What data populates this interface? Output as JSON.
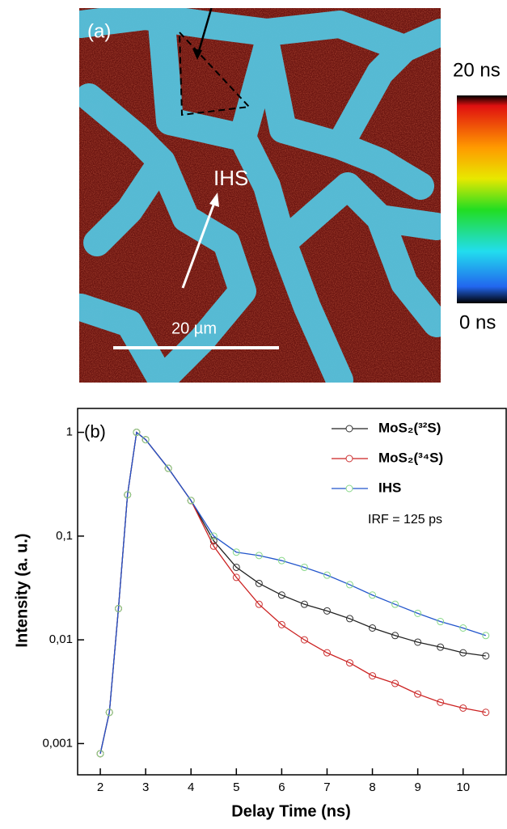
{
  "panel_a": {
    "label": "(a)",
    "annotation": "IHS",
    "scale_bar": "20 µm",
    "colorbar": {
      "max_label": "20 ns",
      "min_label": "0 ns"
    }
  },
  "chart_data": {
    "type": "line",
    "panel_label": "(b)",
    "x_label": "Delay Time (ns)",
    "y_label": "Intensity (a. u.)",
    "annotation": "IRF = 125 ps",
    "log_y": true,
    "legend": "upper right",
    "x": [
      2.0,
      2.2,
      2.4,
      2.6,
      2.8,
      3.0,
      3.5,
      4.0,
      4.5,
      5.0,
      5.5,
      6.0,
      6.5,
      7.0,
      7.5,
      8.0,
      8.5,
      9.0,
      9.5,
      10.0,
      10.5
    ],
    "series": [
      {
        "name": "MoS₂(³²S)",
        "color": "#222222",
        "marker_color": "#333333",
        "values": [
          0.0008,
          0.002,
          0.02,
          0.25,
          1,
          0.85,
          0.45,
          0.22,
          0.09,
          0.05,
          0.035,
          0.027,
          0.022,
          0.019,
          0.016,
          0.013,
          0.011,
          0.0095,
          0.0085,
          0.0075,
          0.007
        ]
      },
      {
        "name": "MoS₂(³⁴S)",
        "color": "#cc2222",
        "marker_color": "#cc3333",
        "values": [
          0.0008,
          0.002,
          0.02,
          0.25,
          1,
          0.85,
          0.45,
          0.22,
          0.08,
          0.04,
          0.022,
          0.014,
          0.01,
          0.0075,
          0.006,
          0.0045,
          0.0038,
          0.003,
          0.0025,
          0.0022,
          0.002
        ]
      },
      {
        "name": "IHS",
        "color": "#2255cc",
        "marker_color": "#88d888",
        "values": [
          0.0008,
          0.002,
          0.02,
          0.25,
          1,
          0.85,
          0.45,
          0.22,
          0.1,
          0.07,
          0.065,
          0.058,
          0.05,
          0.042,
          0.034,
          0.027,
          0.022,
          0.018,
          0.015,
          0.013,
          0.011
        ]
      }
    ],
    "xlim": [
      1.5,
      10.95
    ],
    "ylim": [
      0.0005,
      1.7
    ],
    "xticks": [
      2,
      3,
      4,
      5,
      6,
      7,
      8,
      9,
      10
    ],
    "yticks": [
      {
        "value": 0.001,
        "label": "0,001"
      },
      {
        "value": 0.01,
        "label": "0,01"
      },
      {
        "value": 0.1,
        "label": "0,1"
      },
      1
    ]
  }
}
